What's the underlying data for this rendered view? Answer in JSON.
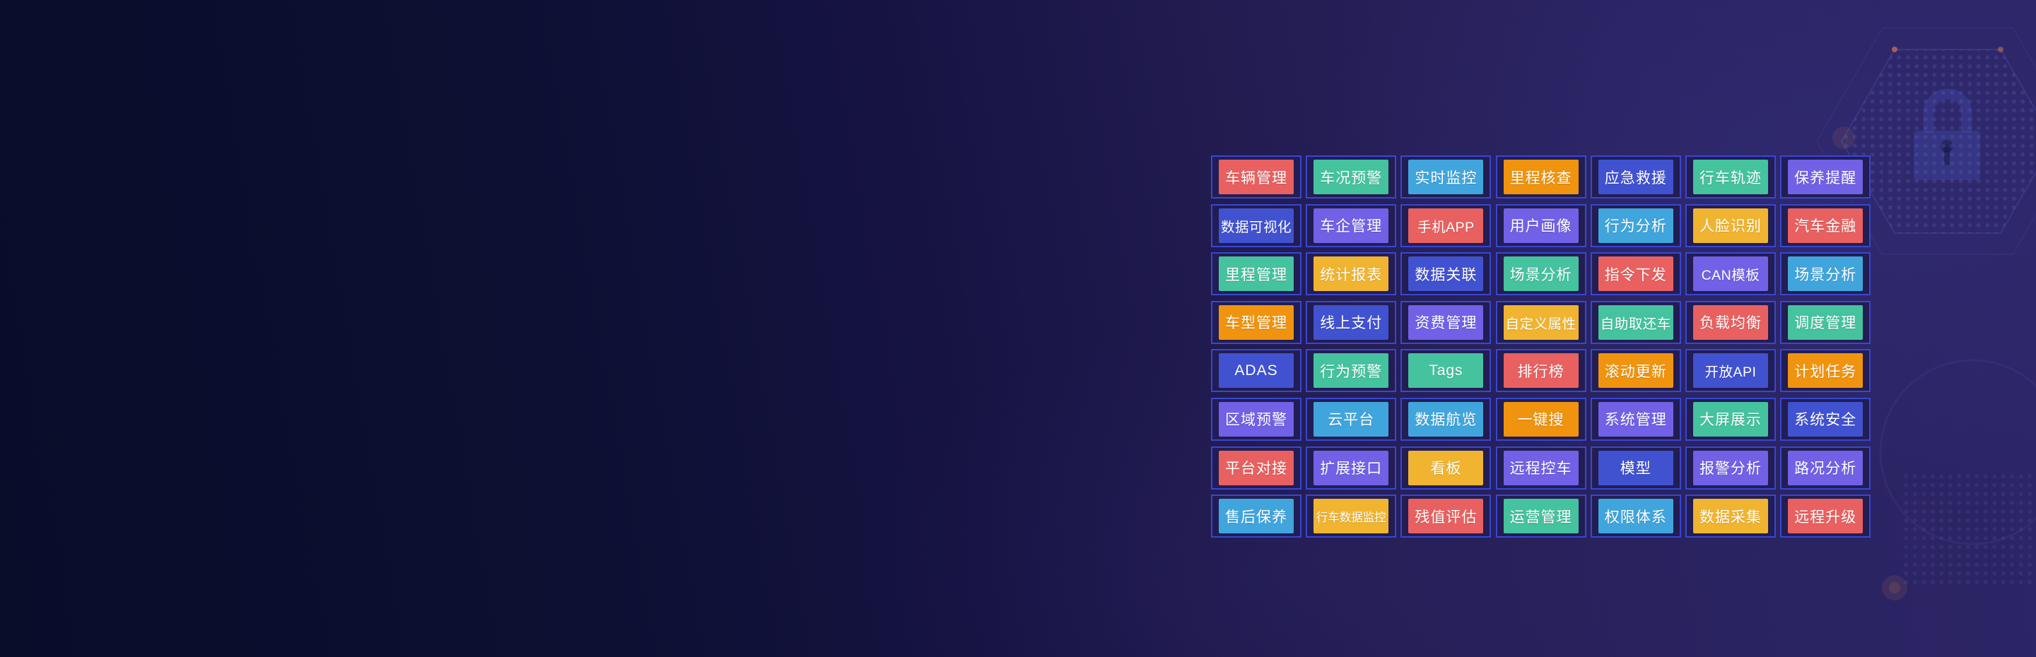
{
  "background": {
    "gradient_left": "#090d2a",
    "gradient_mid": "#241d53",
    "gradient_right": "#2d2667"
  },
  "palette": {
    "red": "#e96060",
    "green": "#45c29e",
    "skyblue": "#41a5dd",
    "orange": "#f0930e",
    "indigo": "#4152d0",
    "violet": "#7161e6",
    "yellow": "#f0b431",
    "cell_border": "#3747d2",
    "cell_inner_bg": "#221d52",
    "button_text": "#ffffff",
    "accent_dot": "#e07a50"
  },
  "decor": {
    "lock_icon": "padlock-watermark",
    "hexagon_outline": "hexagon-decor",
    "dot_pattern": "dot-grid-pattern",
    "glow_dots": "orange-glow-dots"
  },
  "grid": {
    "columns": 7,
    "rows": [
      {
        "cells": [
          {
            "label": "车辆管理",
            "color": "red"
          },
          {
            "label": "车况预警",
            "color": "green"
          },
          {
            "label": "实时监控",
            "color": "skyblue"
          },
          {
            "label": "里程核查",
            "color": "orange"
          },
          {
            "label": "应急救援",
            "color": "indigo"
          },
          {
            "label": "行车轨迹",
            "color": "green"
          },
          {
            "label": "保养提醒",
            "color": "violet"
          }
        ]
      },
      {
        "cells": [
          {
            "label": "数据可视化",
            "color": "indigo"
          },
          {
            "label": "车企管理",
            "color": "violet"
          },
          {
            "label": "手机APP",
            "color": "red"
          },
          {
            "label": "用户画像",
            "color": "violet"
          },
          {
            "label": "行为分析",
            "color": "skyblue"
          },
          {
            "label": "人脸识别",
            "color": "yellow"
          },
          {
            "label": "汽车金融",
            "color": "red"
          }
        ]
      },
      {
        "cells": [
          {
            "label": "里程管理",
            "color": "green"
          },
          {
            "label": "统计报表",
            "color": "yellow"
          },
          {
            "label": "数据关联",
            "color": "indigo"
          },
          {
            "label": "场景分析",
            "color": "green"
          },
          {
            "label": "指令下发",
            "color": "red"
          },
          {
            "label": "CAN模板",
            "color": "violet"
          },
          {
            "label": "场景分析",
            "color": "skyblue"
          }
        ]
      },
      {
        "cells": [
          {
            "label": "车型管理",
            "color": "orange"
          },
          {
            "label": "线上支付",
            "color": "indigo"
          },
          {
            "label": "资费管理",
            "color": "violet"
          },
          {
            "label": "自定义属性",
            "color": "yellow"
          },
          {
            "label": "自助取还车",
            "color": "green"
          },
          {
            "label": "负载均衡",
            "color": "red"
          },
          {
            "label": "调度管理",
            "color": "green"
          }
        ]
      },
      {
        "cells": [
          {
            "label": "ADAS",
            "color": "indigo"
          },
          {
            "label": "行为预警",
            "color": "green"
          },
          {
            "label": "Tags",
            "color": "green"
          },
          {
            "label": "排行榜",
            "color": "red"
          },
          {
            "label": "滚动更新",
            "color": "orange"
          },
          {
            "label": "开放API",
            "color": "indigo"
          },
          {
            "label": "计划任务",
            "color": "orange"
          }
        ]
      },
      {
        "cells": [
          {
            "label": "区域预警",
            "color": "violet"
          },
          {
            "label": "云平台",
            "color": "skyblue"
          },
          {
            "label": "数据航览",
            "color": "skyblue"
          },
          {
            "label": "一键搜",
            "color": "orange"
          },
          {
            "label": "系统管理",
            "color": "violet"
          },
          {
            "label": "大屏展示",
            "color": "green"
          },
          {
            "label": "系统安全",
            "color": "indigo"
          }
        ]
      },
      {
        "cells": [
          {
            "label": "平台对接",
            "color": "red"
          },
          {
            "label": "扩展接口",
            "color": "violet"
          },
          {
            "label": "看板",
            "color": "yellow"
          },
          {
            "label": "远程控车",
            "color": "violet"
          },
          {
            "label": "模型",
            "color": "indigo"
          },
          {
            "label": "报警分析",
            "color": "violet"
          },
          {
            "label": "路况分析",
            "color": "violet"
          }
        ]
      },
      {
        "cells": [
          {
            "label": "售后保养",
            "color": "skyblue"
          },
          {
            "label": "行车数据监控",
            "color": "yellow"
          },
          {
            "label": "残值评估",
            "color": "red"
          },
          {
            "label": "运营管理",
            "color": "green"
          },
          {
            "label": "权限体系",
            "color": "skyblue"
          },
          {
            "label": "数据采集",
            "color": "yellow"
          },
          {
            "label": "远程升级",
            "color": "red"
          }
        ]
      }
    ]
  }
}
